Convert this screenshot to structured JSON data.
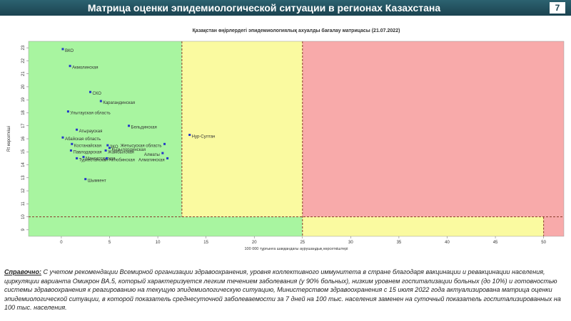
{
  "header": {
    "title": "Матрица оценки эпидемиологической ситуации в регионах Казахстана",
    "page_number": "7"
  },
  "chart_data": {
    "type": "scatter",
    "title": "Қазақстан өңірлердегі эпидемиологиялық ахуалды бағалау матрицасы (21.07.2022)",
    "x_label": "100 000 тұрғынға шаққандағы аурушаңдық көрсеткіштері",
    "y_label": "Rt көрсеткіші",
    "xlim": [
      -3.4,
      52.1
    ],
    "ylim": [
      8.5,
      23.5
    ],
    "xticks": [
      0,
      5,
      10,
      15,
      20,
      25,
      30,
      35,
      40,
      45,
      50
    ],
    "yticks": [
      9,
      10,
      11,
      12,
      13,
      14,
      15,
      16,
      17,
      18,
      19,
      20,
      21,
      22,
      23
    ],
    "thresholds": {
      "y": 10,
      "x_upper": [
        12.5,
        25
      ],
      "x_lower": [
        25,
        50
      ]
    },
    "zone_colors": [
      "#a8f5a0",
      "#fafaa0",
      "#f8aaaa"
    ],
    "threshold_color": "#8b3a2a",
    "color": "#2436c8",
    "labels": [
      "ВКО",
      "Акмолинская",
      "СКО",
      "Карагандинская",
      "Улытауская область",
      "Атырауская",
      "Абайская область",
      "Костанайская",
      "Павлодарская",
      "Туркестанская",
      "Мангистауская",
      "ЗКО",
      "Кызылординская",
      "Жамбылская",
      "Актюбинская",
      "Жетысуская область",
      "Алматы",
      "Алматинская",
      "Шымкент",
      "Бельдинская",
      "Нур-Султан"
    ],
    "x": [
      0.15,
      0.9,
      3.0,
      4.1,
      0.7,
      1.6,
      0.15,
      1.1,
      1.0,
      1.6,
      2.3,
      4.8,
      5.0,
      4.6,
      4.7,
      10.7,
      10.5,
      11.0,
      2.5,
      7.0,
      13.3
    ],
    "y": [
      22.9,
      21.6,
      19.6,
      18.9,
      18.1,
      16.7,
      16.1,
      15.6,
      15.1,
      14.5,
      14.6,
      15.5,
      15.3,
      15.1,
      14.5,
      15.6,
      14.9,
      14.5,
      12.9,
      17.0,
      16.3
    ]
  },
  "note": {
    "label": "Справочно:",
    "text": "С учетом рекомендации Всемирной организации здравоохранения, уровня коллективного иммунитета в стране благодаря вакцинации и ревакцинации населения, циркуляции варианта Омикрон ВА.5, который характеризуется легким течением заболевания (у 90% больных), низким уровнем госпитализации больных (до 10%) и готовностью системы здравоохранения к реагированию на текущую эпидемиологическую ситуацию, Министерством здравоохранения с 15 июля 2022 года актуализирована матрица оценки эпидемиологической ситуации, в которой показатель среднесуточной заболеваемости за 7 дней на 100 тыс. населения заменен на суточный показатель госпитализированных на 100 тыс. населения."
  }
}
